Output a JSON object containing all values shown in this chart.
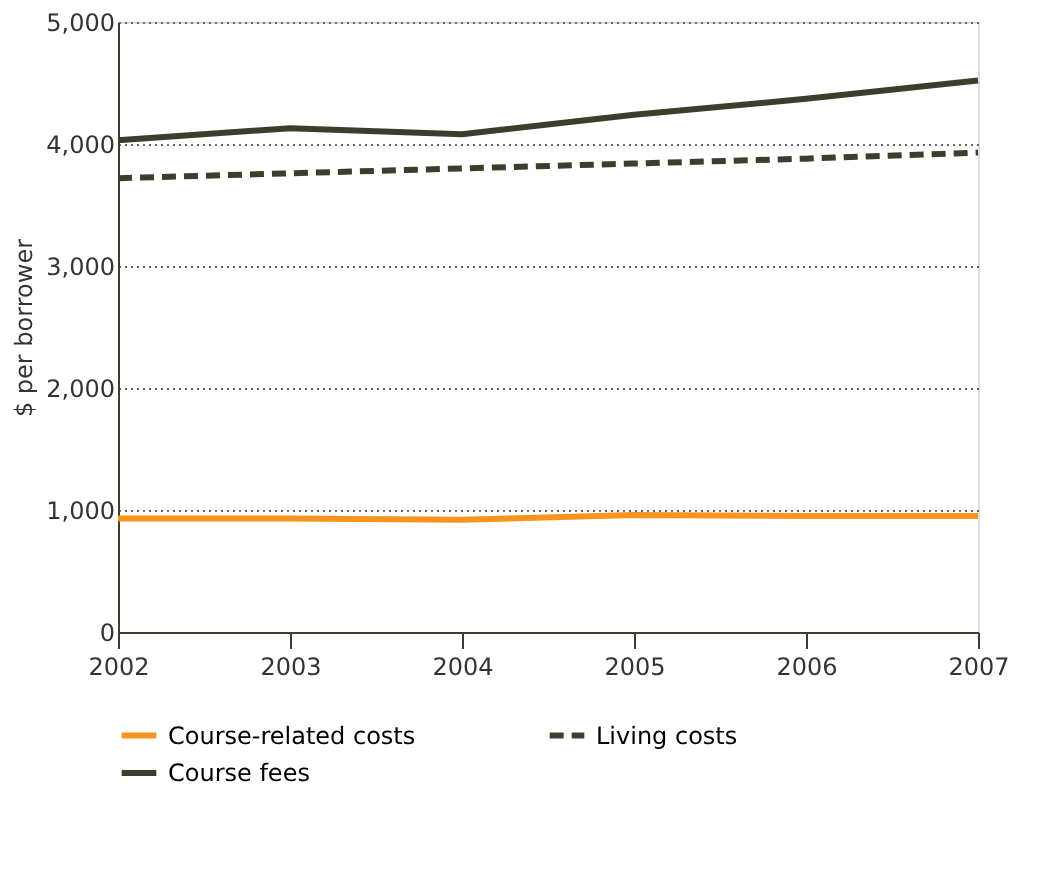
{
  "chart_data": {
    "type": "line",
    "ylabel": "$ per borrower",
    "x": [
      2002,
      2003,
      2004,
      2005,
      2006,
      2007
    ],
    "xlim": [
      2002,
      2007
    ],
    "xticks": [
      2002,
      2003,
      2004,
      2005,
      2006,
      2007
    ],
    "ylim": [
      0,
      5000
    ],
    "yticks": [
      {
        "value": 0,
        "label": "0"
      },
      {
        "value": 1000,
        "label": "1,000"
      },
      {
        "value": 2000,
        "label": "2,000"
      },
      {
        "value": 3000,
        "label": "3,000"
      },
      {
        "value": 4000,
        "label": "4,000"
      },
      {
        "value": 5000,
        "label": "5,000"
      }
    ],
    "grid": "y",
    "legend": "bottom",
    "series": [
      {
        "name": "Course-related costs",
        "color": "#f7941d",
        "line_style": "solid",
        "values": [
          930,
          930,
          920,
          960,
          950,
          950
        ]
      },
      {
        "name": "Living costs",
        "color": "#3d3d2e",
        "line_style": "dashed",
        "values": [
          3720,
          3760,
          3800,
          3840,
          3880,
          3930
        ]
      },
      {
        "name": "Course fees",
        "color": "#3d3d2e",
        "line_style": "solid",
        "values": [
          4030,
          4130,
          4080,
          4240,
          4370,
          4520
        ]
      }
    ]
  }
}
